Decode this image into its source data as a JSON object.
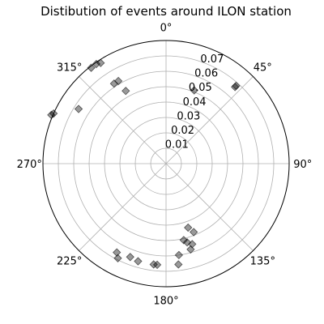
{
  "chart_data": {
    "type": "scatter",
    "projection": "polar",
    "title": "Distibution of events around ILON station",
    "theta_zero_location": "N",
    "theta_direction": "clockwise",
    "theta_tick_labels": [
      "0°",
      "45°",
      "90°",
      "135°",
      "180°",
      "225°",
      "270°",
      "315°"
    ],
    "r_tick_labels": [
      "0.01",
      "0.02",
      "0.03",
      "0.04",
      "0.05",
      "0.06",
      "0.07"
    ],
    "rlim": [
      0,
      0.08
    ],
    "rlabel_position_deg": 22.5,
    "grid": true,
    "marker": "diamond",
    "marker_color": "#000000",
    "marker_alpha": 0.4,
    "points": [
      {
        "theta": 293,
        "r": 0.081
      },
      {
        "theta": 294,
        "r": 0.08
      },
      {
        "theta": 302,
        "r": 0.067
      },
      {
        "theta": 322,
        "r": 0.079
      },
      {
        "theta": 325,
        "r": 0.079
      },
      {
        "theta": 327,
        "r": 0.078
      },
      {
        "theta": 327,
        "r": 0.062
      },
      {
        "theta": 330,
        "r": 0.062
      },
      {
        "theta": 331,
        "r": 0.054
      },
      {
        "theta": 21,
        "r": 0.051
      },
      {
        "theta": 42,
        "r": 0.068
      },
      {
        "theta": 42,
        "r": 0.067
      },
      {
        "theta": 158,
        "r": 0.048
      },
      {
        "theta": 161,
        "r": 0.044
      },
      {
        "theta": 164,
        "r": 0.058
      },
      {
        "theta": 162,
        "r": 0.055
      },
      {
        "theta": 165,
        "r": 0.053
      },
      {
        "theta": 167,
        "r": 0.051
      },
      {
        "theta": 173,
        "r": 0.066
      },
      {
        "theta": 172,
        "r": 0.06
      },
      {
        "theta": 185,
        "r": 0.066
      },
      {
        "theta": 187,
        "r": 0.066
      },
      {
        "theta": 196,
        "r": 0.066
      },
      {
        "theta": 201,
        "r": 0.065
      },
      {
        "theta": 207,
        "r": 0.069
      },
      {
        "theta": 209,
        "r": 0.066
      }
    ]
  }
}
